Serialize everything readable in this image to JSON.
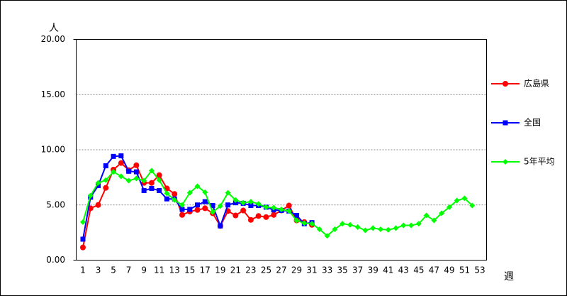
{
  "chart_data": {
    "type": "line",
    "y_label": "人",
    "x_label": "週",
    "categories": [
      1,
      null,
      3,
      null,
      5,
      null,
      7,
      null,
      9,
      null,
      11,
      null,
      13,
      null,
      15,
      null,
      17,
      null,
      19,
      null,
      21,
      null,
      23,
      null,
      25,
      null,
      27,
      null,
      29,
      null,
      31,
      null,
      33,
      null,
      35,
      null,
      37,
      null,
      39,
      null,
      41,
      null,
      43,
      null,
      45,
      null,
      47,
      null,
      49,
      null,
      51,
      null,
      53
    ],
    "ylim": [
      0,
      20
    ],
    "yticks": [
      {
        "value": 0,
        "label": "0.00"
      },
      {
        "value": 5,
        "label": "5.00"
      },
      {
        "value": 10,
        "label": "10.00"
      },
      {
        "value": 15,
        "label": "15.00"
      },
      {
        "value": 20,
        "label": "20.00"
      }
    ],
    "grid": true,
    "legend": "right",
    "series": [
      {
        "name": "広島県",
        "color": "#ff0000",
        "marker": "circle",
        "values": [
          1.15,
          4.7,
          5.0,
          6.55,
          8.2,
          8.8,
          8.15,
          8.6,
          7.0,
          7.0,
          7.7,
          6.5,
          6.0,
          4.1,
          4.4,
          4.55,
          4.7,
          4.25,
          3.1,
          4.45,
          4.05,
          4.5,
          3.65,
          4.0,
          3.9,
          4.1,
          4.5,
          4.95,
          3.6,
          3.45,
          3.2,
          null,
          null,
          null,
          null,
          null,
          null,
          null,
          null,
          null,
          null,
          null,
          null,
          null,
          null,
          null,
          null,
          null,
          null,
          null,
          null,
          null,
          null
        ]
      },
      {
        "name": "全国",
        "color": "#0000ff",
        "marker": "square",
        "values": [
          1.9,
          5.7,
          6.75,
          8.55,
          9.4,
          9.45,
          8.05,
          8.0,
          6.3,
          6.5,
          6.3,
          5.55,
          5.55,
          4.6,
          4.6,
          5.0,
          5.3,
          4.95,
          3.1,
          5.0,
          5.2,
          5.15,
          4.95,
          4.95,
          4.8,
          4.55,
          4.5,
          4.45,
          4.05,
          3.3,
          3.4,
          null,
          null,
          null,
          null,
          null,
          null,
          null,
          null,
          null,
          null,
          null,
          null,
          null,
          null,
          null,
          null,
          null,
          null,
          null,
          null,
          null,
          null
        ]
      },
      {
        "name": "5年平均",
        "color": "#00ff00",
        "marker": "diamond",
        "values": [
          3.45,
          5.85,
          7.0,
          7.25,
          8.0,
          7.6,
          7.2,
          7.4,
          7.2,
          8.1,
          7.25,
          6.05,
          5.45,
          5.0,
          6.1,
          6.7,
          6.15,
          4.35,
          4.9,
          6.1,
          5.45,
          5.2,
          5.3,
          5.1,
          4.8,
          4.75,
          4.6,
          4.45,
          3.6,
          3.35,
          3.3,
          2.8,
          2.2,
          2.8,
          3.3,
          3.2,
          3.0,
          2.7,
          2.9,
          2.8,
          2.75,
          2.9,
          3.15,
          3.15,
          3.3,
          4.05,
          3.6,
          4.25,
          4.8,
          5.4,
          5.6,
          4.95,
          null
        ]
      }
    ]
  }
}
